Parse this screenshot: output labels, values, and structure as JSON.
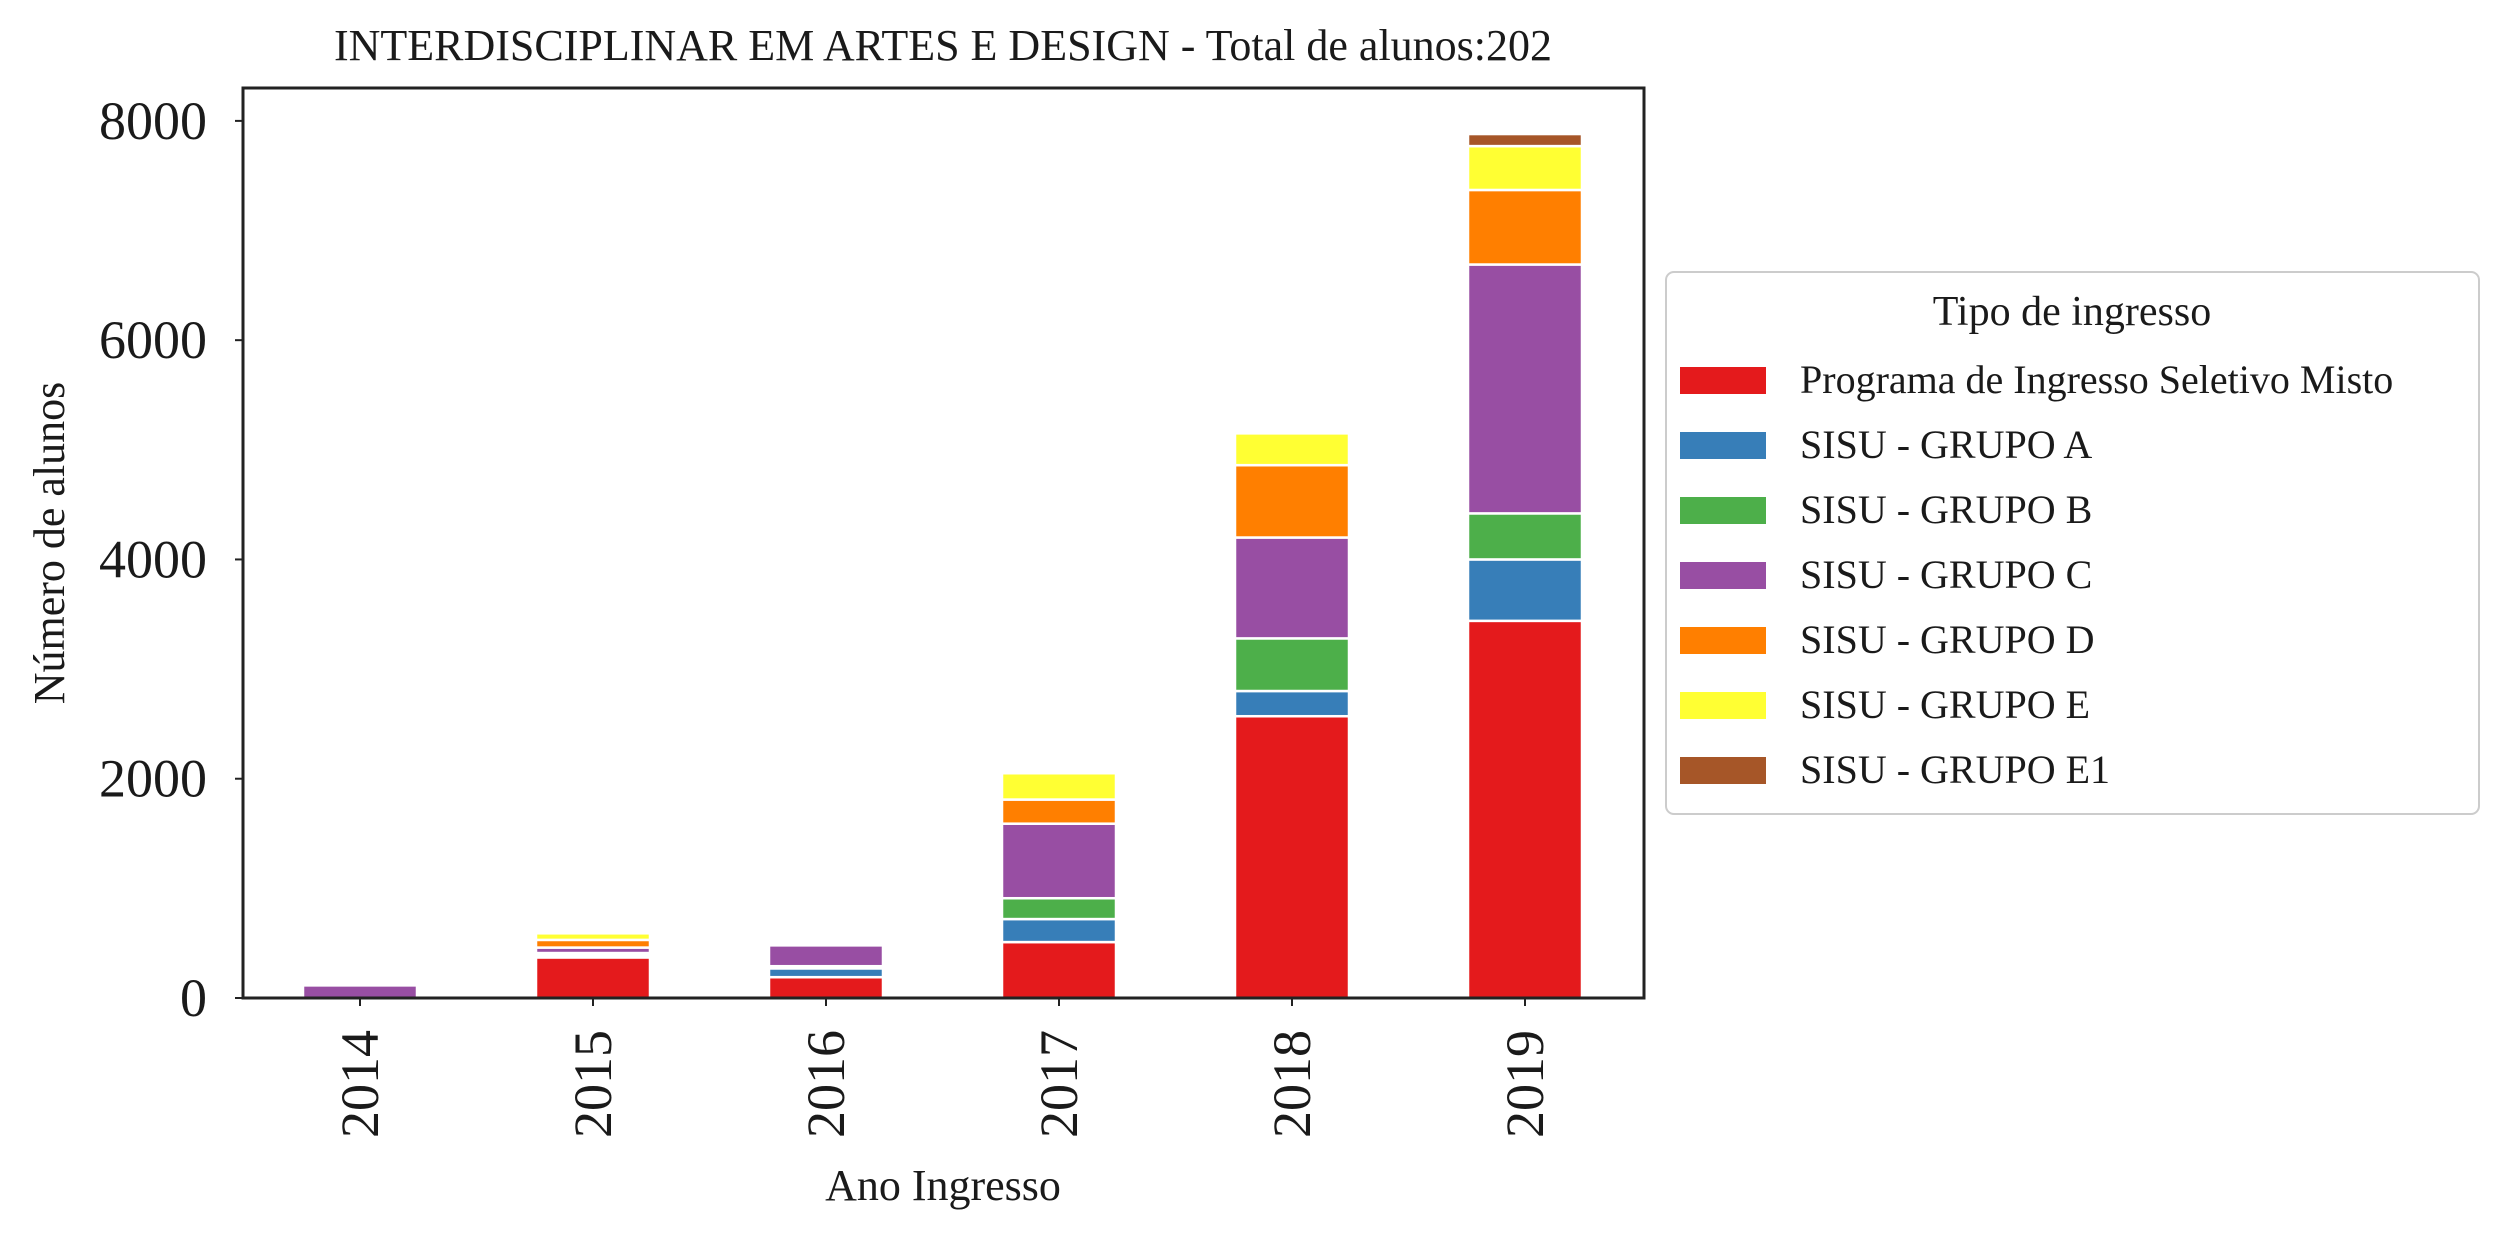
{
  "chart_data": {
    "type": "bar",
    "stacked": true,
    "title": "INTERDISCIPLINAR EM ARTES E DESIGN - Total de alunos:202",
    "xlabel": "Ano Ingresso",
    "ylabel": "Número de alunos",
    "categories": [
      "2014",
      "2015",
      "2016",
      "2017",
      "2018",
      "2019"
    ],
    "ylim": [
      0,
      8300
    ],
    "yticks": [
      0,
      2000,
      4000,
      6000,
      8000
    ],
    "grid": false,
    "legend": {
      "title": "Tipo de ingresso",
      "placement": "center-right outside"
    },
    "series": [
      {
        "name": "Programa de Ingresso Seletivo Misto",
        "color": "#e41a1c",
        "values": [
          0,
          370,
          190,
          510,
          2570,
          3440
        ]
      },
      {
        "name": "SISU - GRUPO A",
        "color": "#377eb8",
        "values": [
          0,
          20,
          80,
          210,
          230,
          560
        ]
      },
      {
        "name": "SISU - GRUPO B",
        "color": "#4daf4a",
        "values": [
          0,
          20,
          20,
          190,
          480,
          420
        ]
      },
      {
        "name": "SISU - GRUPO C",
        "color": "#984ea3",
        "values": [
          115,
          50,
          190,
          680,
          920,
          2270
        ]
      },
      {
        "name": "SISU - GRUPO D",
        "color": "#ff7f00",
        "values": [
          0,
          70,
          0,
          220,
          660,
          680
        ]
      },
      {
        "name": "SISU - GRUPO E",
        "color": "#ffff33",
        "values": [
          0,
          60,
          0,
          240,
          290,
          400
        ]
      },
      {
        "name": "SISU - GRUPO E1",
        "color": "#a65628",
        "values": [
          0,
          0,
          0,
          0,
          0,
          110
        ]
      }
    ]
  }
}
